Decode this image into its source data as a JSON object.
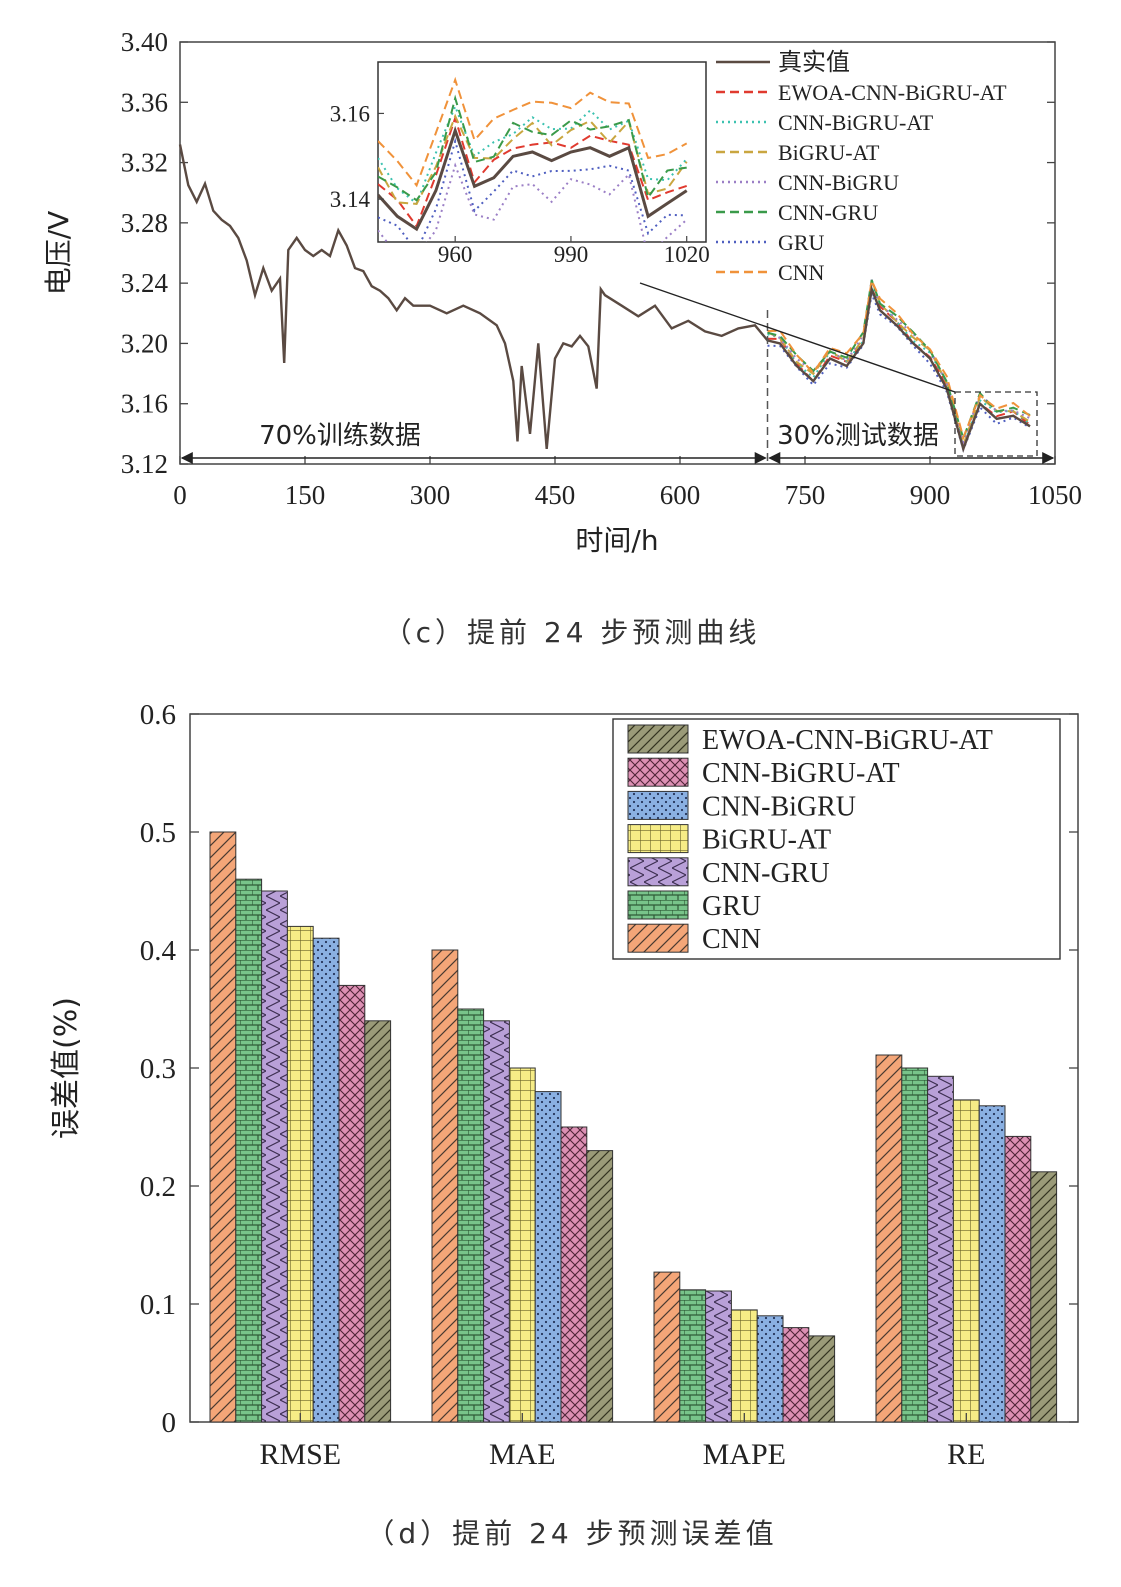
{
  "chart_data": [
    {
      "type": "line",
      "caption": "（c）提前 24 步预测曲线",
      "xlabel": "时间/h",
      "ylabel": "电压/V",
      "xlim": [
        0,
        1050
      ],
      "ylim": [
        3.12,
        3.4
      ],
      "x_ticks": [
        "0",
        "150",
        "300",
        "450",
        "600",
        "750",
        "900",
        "1050"
      ],
      "y_ticks": [
        "3.12",
        "3.16",
        "3.20",
        "3.24",
        "3.28",
        "3.32",
        "3.36",
        "3.40"
      ],
      "split_x": 705,
      "train_label": "70%训练数据",
      "test_label": "30%测试数据",
      "legend": [
        {
          "name": "真实值",
          "color": "#5a4a42",
          "style": "solid"
        },
        {
          "name": "EWOA-CNN-BiGRU-AT",
          "color": "#e03a2f",
          "style": "dash"
        },
        {
          "name": "CNN-BiGRU-AT",
          "color": "#3cc2b0",
          "style": "dot"
        },
        {
          "name": "BiGRU-AT",
          "color": "#c9a640",
          "style": "dash"
        },
        {
          "name": "CNN-BiGRU",
          "color": "#9b7fc6",
          "style": "dot"
        },
        {
          "name": "CNN-GRU",
          "color": "#3a9a4a",
          "style": "dash"
        },
        {
          "name": "GRU",
          "color": "#4f5fc0",
          "style": "dot"
        },
        {
          "name": "CNN",
          "color": "#f0923a",
          "style": "dash"
        }
      ],
      "actual": {
        "x": [
          0,
          10,
          20,
          30,
          40,
          50,
          60,
          70,
          80,
          90,
          100,
          110,
          120,
          125,
          130,
          140,
          150,
          160,
          170,
          180,
          190,
          200,
          210,
          220,
          230,
          240,
          250,
          260,
          270,
          280,
          300,
          320,
          340,
          360,
          380,
          390,
          400,
          405,
          410,
          420,
          430,
          440,
          450,
          460,
          470,
          480,
          490,
          500,
          505,
          510,
          530,
          550,
          570,
          590,
          610,
          630,
          650,
          670,
          690,
          705,
          720,
          740,
          760,
          780,
          800,
          820,
          830,
          840,
          860,
          880,
          900,
          920,
          940,
          960,
          980,
          1000,
          1020
        ],
        "y": [
          3.332,
          3.305,
          3.294,
          3.306,
          3.288,
          3.282,
          3.278,
          3.27,
          3.255,
          3.232,
          3.25,
          3.235,
          3.243,
          3.187,
          3.262,
          3.27,
          3.262,
          3.258,
          3.262,
          3.258,
          3.275,
          3.265,
          3.25,
          3.248,
          3.238,
          3.235,
          3.23,
          3.222,
          3.23,
          3.225,
          3.225,
          3.22,
          3.225,
          3.22,
          3.212,
          3.2,
          3.175,
          3.135,
          3.185,
          3.14,
          3.2,
          3.13,
          3.19,
          3.2,
          3.198,
          3.205,
          3.198,
          3.17,
          3.236,
          3.232,
          3.225,
          3.218,
          3.225,
          3.21,
          3.215,
          3.208,
          3.205,
          3.21,
          3.212,
          3.202,
          3.2,
          3.185,
          3.175,
          3.19,
          3.185,
          3.2,
          3.236,
          3.222,
          3.212,
          3.2,
          3.19,
          3.17,
          3.13,
          3.16,
          3.15,
          3.152,
          3.145
        ]
      },
      "inset": {
        "xlim": [
          940,
          1025
        ],
        "ylim": [
          3.13,
          3.172
        ],
        "x_ticks": [
          "960",
          "990",
          "1020"
        ],
        "y_ticks": [
          "3.14",
          "3.16"
        ],
        "actual": {
          "x": [
            940,
            945,
            950,
            955,
            960,
            965,
            970,
            975,
            980,
            985,
            990,
            995,
            1000,
            1005,
            1010,
            1015,
            1020
          ],
          "y": [
            3.141,
            3.136,
            3.133,
            3.142,
            3.156,
            3.143,
            3.145,
            3.15,
            3.151,
            3.149,
            3.151,
            3.152,
            3.15,
            3.152,
            3.136,
            3.139,
            3.142
          ]
        }
      }
    },
    {
      "type": "bar",
      "caption": "（d）提前 24 步预测误差值",
      "xlabel": "",
      "ylabel": "误差值(%)",
      "ylim": [
        0,
        0.6
      ],
      "y_ticks": [
        "0",
        "0.1",
        "0.2",
        "0.3",
        "0.4",
        "0.5",
        "0.6"
      ],
      "categories": [
        "RMSE",
        "MAE",
        "MAPE",
        "RE"
      ],
      "series": [
        {
          "name": "CNN",
          "color": "#f4a678",
          "values": [
            0.5,
            0.4,
            0.127,
            0.311
          ]
        },
        {
          "name": "GRU",
          "color": "#78c48a",
          "values": [
            0.46,
            0.35,
            0.112,
            0.3
          ]
        },
        {
          "name": "CNN-GRU",
          "color": "#b9a0d8",
          "values": [
            0.45,
            0.34,
            0.111,
            0.293
          ]
        },
        {
          "name": "BiGRU-AT",
          "color": "#f6ec86",
          "values": [
            0.42,
            0.3,
            0.095,
            0.273
          ]
        },
        {
          "name": "CNN-BiGRU",
          "color": "#8ab0e2",
          "values": [
            0.41,
            0.28,
            0.09,
            0.268
          ]
        },
        {
          "name": "CNN-BiGRU-AT",
          "color": "#dc90b4",
          "values": [
            0.37,
            0.25,
            0.08,
            0.242
          ]
        },
        {
          "name": "EWOA-CNN-BiGRU-AT",
          "color": "#9a9a78",
          "values": [
            0.34,
            0.23,
            0.073,
            0.212
          ]
        }
      ],
      "legend_order": [
        "EWOA-CNN-BiGRU-AT",
        "CNN-BiGRU-AT",
        "CNN-BiGRU",
        "BiGRU-AT",
        "CNN-GRU",
        "GRU",
        "CNN"
      ]
    }
  ]
}
